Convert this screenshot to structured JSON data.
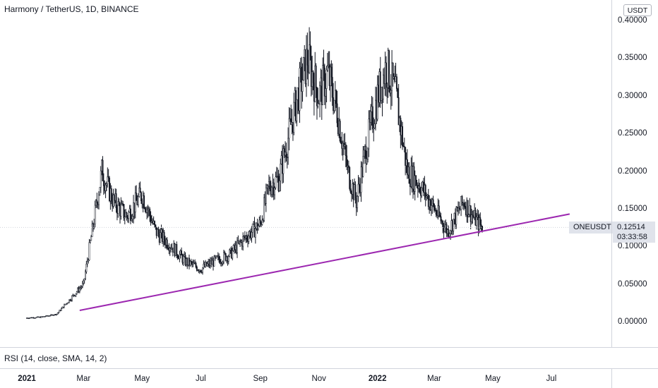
{
  "header": {
    "symbol_title": "Harmony / TetherUS, 1D, BINANCE"
  },
  "price_axis": {
    "currency": "USDT",
    "ticks": [
      "0.40000",
      "0.35000",
      "0.30000",
      "0.25000",
      "0.20000",
      "0.15000",
      "0.10000",
      "0.05000",
      "0.00000"
    ]
  },
  "last_price": {
    "symbol": "ONEUSDT",
    "price": "0.12514",
    "countdown": "03:33:58"
  },
  "indicator": {
    "label": "RSI (14, close, SMA, 14, 2)"
  },
  "time_axis": {
    "ticks": [
      {
        "label": "2021",
        "bold": true
      },
      {
        "label": "Mar",
        "bold": false
      },
      {
        "label": "May",
        "bold": false
      },
      {
        "label": "Jul",
        "bold": false
      },
      {
        "label": "Sep",
        "bold": false
      },
      {
        "label": "Nov",
        "bold": false
      },
      {
        "label": "2022",
        "bold": true
      },
      {
        "label": "Mar",
        "bold": false
      },
      {
        "label": "May",
        "bold": false
      },
      {
        "label": "Jul",
        "bold": false
      }
    ]
  },
  "chart_data": {
    "type": "line",
    "title": "Harmony / TetherUS, 1D, BINANCE",
    "xlabel": "",
    "ylabel": "",
    "ylim": [
      0,
      0.4
    ],
    "series": [
      {
        "name": "ONEUSDT",
        "x": [
          "2021-01-01",
          "2021-01-15",
          "2021-02-01",
          "2021-02-15",
          "2021-03-01",
          "2021-03-10",
          "2021-03-20",
          "2021-04-01",
          "2021-04-15",
          "2021-05-01",
          "2021-05-15",
          "2021-06-01",
          "2021-06-15",
          "2021-07-01",
          "2021-07-15",
          "2021-08-01",
          "2021-08-15",
          "2021-09-01",
          "2021-09-10",
          "2021-09-20",
          "2021-10-01",
          "2021-10-10",
          "2021-10-20",
          "2021-11-01",
          "2021-11-10",
          "2021-11-20",
          "2021-12-01",
          "2021-12-10",
          "2021-12-20",
          "2022-01-01",
          "2022-01-10",
          "2022-01-20",
          "2022-02-01",
          "2022-02-15",
          "2022-03-01",
          "2022-03-15",
          "2022-04-01",
          "2022-04-10",
          "2022-04-20"
        ],
        "values": [
          0.005,
          0.006,
          0.01,
          0.03,
          0.05,
          0.12,
          0.2,
          0.16,
          0.14,
          0.17,
          0.12,
          0.1,
          0.08,
          0.07,
          0.08,
          0.09,
          0.11,
          0.13,
          0.18,
          0.19,
          0.25,
          0.3,
          0.35,
          0.3,
          0.33,
          0.28,
          0.2,
          0.16,
          0.23,
          0.3,
          0.34,
          0.3,
          0.2,
          0.18,
          0.15,
          0.12,
          0.16,
          0.14,
          0.125
        ]
      },
      {
        "name": "Trendline",
        "x": [
          "2021-02-25",
          "2022-07-20"
        ],
        "values": [
          0.015,
          0.143
        ]
      }
    ],
    "x_ticks": [
      "2021",
      "Mar",
      "May",
      "Jul",
      "Sep",
      "Nov",
      "2022",
      "Mar",
      "May",
      "Jul"
    ],
    "y_ticks": [
      0.4,
      0.35,
      0.3,
      0.25,
      0.2,
      0.15,
      0.1,
      0.05,
      0.0
    ],
    "grid": false,
    "colors": {
      "candles": "#131722",
      "trendline": "#9c27b0",
      "last_price_line": "#d1d4dc"
    }
  }
}
